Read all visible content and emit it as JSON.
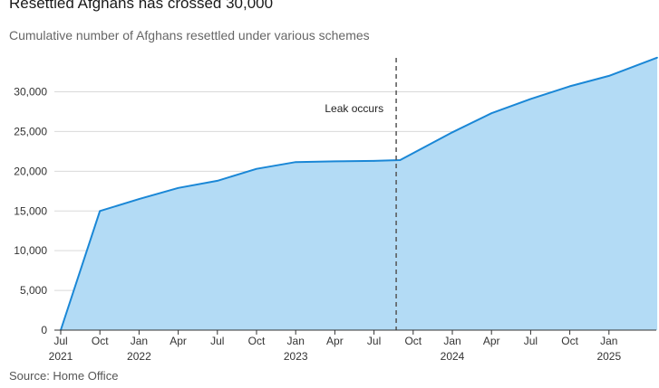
{
  "chart_data": {
    "type": "area",
    "title": "Resettled Afghans has crossed 30,000",
    "subtitle": "Cumulative number of Afghans resettled under various schemes",
    "source": "Source: Home Office",
    "xlabel": "",
    "ylabel": "",
    "ylim": [
      0,
      34000
    ],
    "yticks": [
      0,
      5000,
      10000,
      15000,
      20000,
      25000,
      30000
    ],
    "ytick_labels": [
      "0",
      "5,000",
      "10,000",
      "15,000",
      "20,000",
      "25,000",
      "30,000"
    ],
    "x_range_months": [
      0,
      49
    ],
    "xticks": [
      {
        "m": 0,
        "label": "Jul",
        "year": "2021"
      },
      {
        "m": 3,
        "label": "Oct",
        "year": ""
      },
      {
        "m": 6,
        "label": "Jan",
        "year": "2022"
      },
      {
        "m": 9,
        "label": "Apr",
        "year": ""
      },
      {
        "m": 12,
        "label": "Jul",
        "year": ""
      },
      {
        "m": 15,
        "label": "Oct",
        "year": ""
      },
      {
        "m": 18,
        "label": "Jan",
        "year": "2023"
      },
      {
        "m": 21,
        "label": "Apr",
        "year": ""
      },
      {
        "m": 24,
        "label": "Jul",
        "year": ""
      },
      {
        "m": 27,
        "label": "Oct",
        "year": ""
      },
      {
        "m": 30,
        "label": "Jan",
        "year": "2024"
      },
      {
        "m": 33,
        "label": "Apr",
        "year": ""
      },
      {
        "m": 36,
        "label": "Jul",
        "year": ""
      },
      {
        "m": 39,
        "label": "Oct",
        "year": ""
      },
      {
        "m": 42,
        "label": "Jan",
        "year": "2025"
      }
    ],
    "series": [
      {
        "name": "Cumulative resettled",
        "x_months": [
          0,
          3,
          6,
          9,
          12,
          15,
          18,
          21,
          24,
          26,
          30,
          33,
          36,
          39,
          42,
          45.7
        ],
        "values": [
          0,
          15000,
          16500,
          17900,
          18800,
          20300,
          21150,
          21250,
          21300,
          21400,
          24900,
          27300,
          29100,
          30700,
          32000,
          34300
        ]
      }
    ],
    "annotation": {
      "label": "Leak occurs",
      "x_month": 25.7
    },
    "colors": {
      "line": "#1a87d6",
      "fill": "#b3dbf5",
      "grid": "#d9d9d9",
      "baseline": "#333333",
      "annotation_line": "#555555"
    }
  }
}
